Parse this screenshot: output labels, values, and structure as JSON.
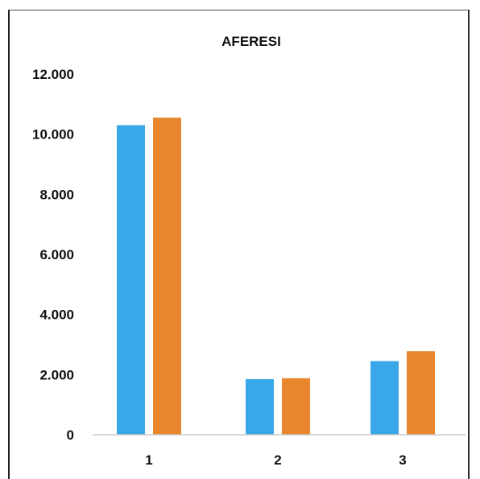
{
  "chart_data": {
    "type": "bar",
    "title": "AFERESI",
    "xlabel": "",
    "ylabel": "",
    "categories": [
      "1",
      "2",
      "3"
    ],
    "series": [
      {
        "values": [
          10300,
          1850,
          2450
        ]
      },
      {
        "values": [
          10550,
          1880,
          2780
        ]
      }
    ],
    "ylim": [
      0,
      12000
    ],
    "yticks": [
      "0",
      "2.000",
      "4.000",
      "6.000",
      "8.000",
      "10.000",
      "12.000"
    ],
    "grid": false,
    "legend": "none"
  },
  "colors": {
    "series_1": "#3aa8e8",
    "series_2": "#e8862e",
    "axis": "#c8c8c8",
    "text": "#111111"
  }
}
